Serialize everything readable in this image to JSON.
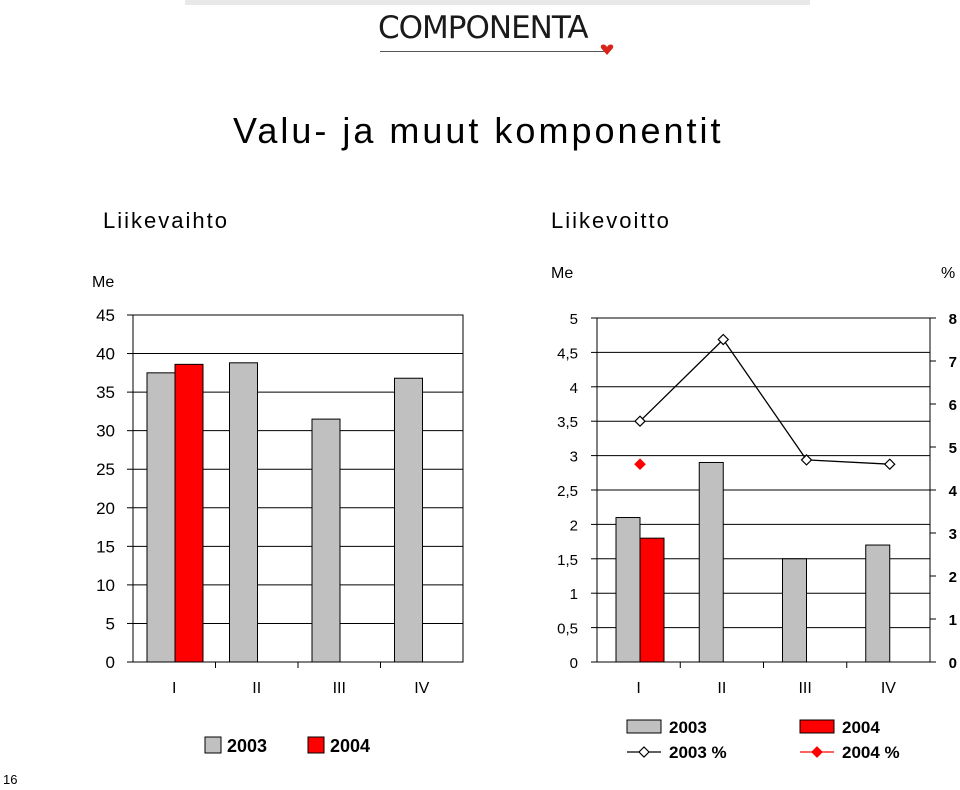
{
  "header": {
    "logo_text": "COMPONENTA"
  },
  "page_title": "Valu- ja muut komponentit",
  "page_number": "16",
  "colors": {
    "series_2003": "#c0c0c0",
    "series_2004": "#ff0000",
    "line": "#000000"
  },
  "chart_data": [
    {
      "type": "bar",
      "title": "Liikevaihto",
      "ylabel": "Me",
      "categories": [
        "I",
        "II",
        "III",
        "IV"
      ],
      "ylim": [
        0,
        45
      ],
      "yticks": [
        "0",
        "5",
        "10",
        "15",
        "20",
        "25",
        "30",
        "35",
        "40",
        "45"
      ],
      "grid": true,
      "legend_position": "bottom",
      "series": [
        {
          "name": "2003",
          "color": "#c0c0c0",
          "values": [
            37.5,
            38.8,
            31.5,
            36.8
          ]
        },
        {
          "name": "2004",
          "color": "#ff0000",
          "values": [
            38.6,
            null,
            null,
            null
          ]
        }
      ]
    },
    {
      "type": "bar",
      "title": "Liikevoitto",
      "ylabel": "Me",
      "y2label": "%",
      "categories": [
        "I",
        "II",
        "III",
        "IV"
      ],
      "ylim": [
        0,
        5
      ],
      "y2lim": [
        0,
        8
      ],
      "yticks": [
        "0",
        "0,5",
        "1",
        "1,5",
        "2",
        "2,5",
        "3",
        "3,5",
        "4",
        "4,5",
        "5"
      ],
      "y2ticks": [
        "0",
        "1",
        "2",
        "3",
        "4",
        "5",
        "6",
        "7",
        "8"
      ],
      "grid": true,
      "legend_position": "bottom",
      "series": [
        {
          "name": "2003",
          "kind": "bar",
          "color": "#c0c0c0",
          "values": [
            2.1,
            2.9,
            1.5,
            1.7
          ]
        },
        {
          "name": "2004",
          "kind": "bar",
          "color": "#ff0000",
          "values": [
            1.8,
            null,
            null,
            null
          ]
        },
        {
          "name": "2003 %",
          "kind": "line",
          "axis": "right",
          "color": "#000000",
          "marker": "open-diamond",
          "values": [
            5.6,
            7.5,
            4.7,
            4.6
          ]
        },
        {
          "name": "2004 %",
          "kind": "line",
          "axis": "right",
          "color": "#ff0000",
          "marker": "filled-diamond",
          "values": [
            4.6,
            null,
            null,
            null
          ]
        }
      ]
    }
  ]
}
